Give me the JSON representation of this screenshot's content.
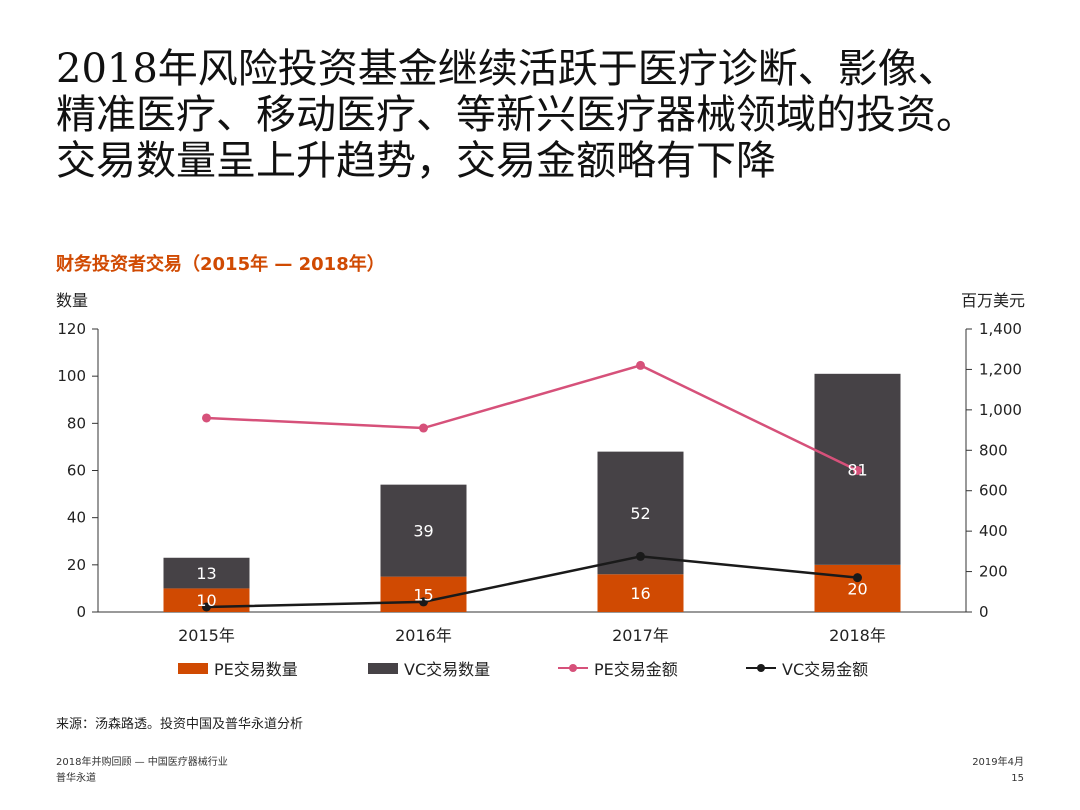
{
  "headline": {
    "lines": [
      "2018年风险投资基金继续活跃于医疗诊断、影像、",
      "精准医疗、移动医疗、等新兴医疗器械领域的投资。",
      "交易数量呈上升趋势，交易金额略有下降"
    ]
  },
  "chart_data": {
    "type": "bar",
    "title": "财务投资者交易（2015年 — 2018年）",
    "ylabel_left": "数量",
    "ylabel_right": "百万美元",
    "categories": [
      "2015年",
      "2016年",
      "2017年",
      "2018年"
    ],
    "ylim_left": [
      0,
      120
    ],
    "ylim_right": [
      0,
      1400
    ],
    "yticks_left": [
      "0",
      "20",
      "40",
      "60",
      "80",
      "100",
      "120"
    ],
    "yticks_right": [
      "0",
      "200",
      "400",
      "600",
      "800",
      "1,000",
      "1,200",
      "1,400"
    ],
    "series": [
      {
        "name": "PE交易数量",
        "kind": "bar",
        "stack": "count",
        "axis": "left",
        "color": "#d04a02",
        "values": [
          10,
          15,
          16,
          20
        ],
        "labels": [
          "10",
          "15",
          "16",
          "20"
        ]
      },
      {
        "name": "VC交易数量",
        "kind": "bar",
        "stack": "count",
        "axis": "left",
        "color": "#464246",
        "values": [
          13,
          39,
          52,
          81
        ],
        "labels": [
          "13",
          "39",
          "52",
          "81"
        ]
      },
      {
        "name": "PE交易金额",
        "kind": "line",
        "axis": "right",
        "color": "#d6517a",
        "values": [
          960,
          910,
          1220,
          700
        ]
      },
      {
        "name": "VC交易金额",
        "kind": "line",
        "axis": "right",
        "color": "#1a1a1a",
        "values": [
          25,
          50,
          275,
          170
        ]
      }
    ],
    "legend_position": "bottom"
  },
  "source": "来源：汤森路透。投资中国及普华永道分析",
  "footer": {
    "left_line1": "2018年并购回顾 — 中国医疗器械行业",
    "left_line2": "普华永道",
    "right_line1": "2019年4月",
    "right_line2": "15"
  }
}
